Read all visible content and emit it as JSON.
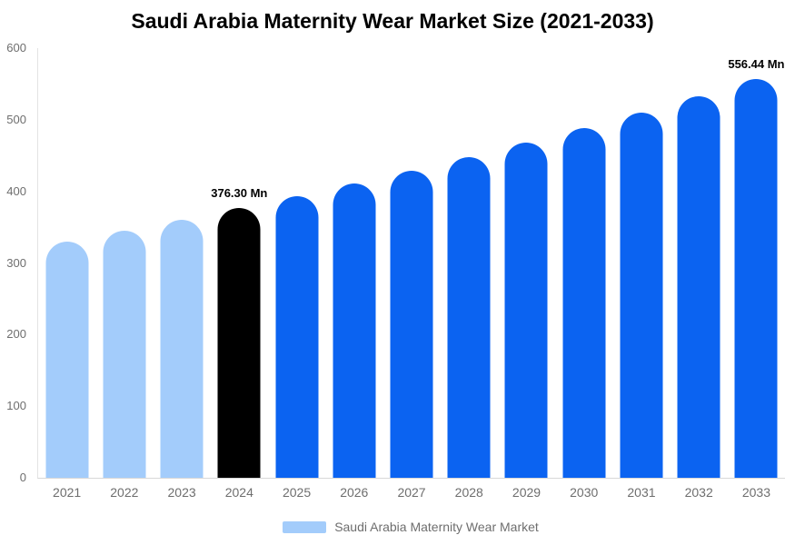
{
  "chart_data": {
    "type": "bar",
    "title": "Saudi Arabia Maternity Wear Market Size (2021-2033)",
    "legend_label": "Saudi Arabia Maternity Wear Market",
    "unit": "Mn",
    "categories": [
      "2021",
      "2022",
      "2023",
      "2024",
      "2025",
      "2026",
      "2027",
      "2028",
      "2029",
      "2030",
      "2031",
      "2032",
      "2033"
    ],
    "values": [
      330.4,
      345.1,
      360.4,
      376.3,
      393.0,
      410.5,
      428.7,
      447.8,
      467.6,
      488.4,
      510.1,
      532.8,
      556.44
    ],
    "segments": [
      "historical",
      "historical",
      "historical",
      "base_year",
      "forecast",
      "forecast",
      "forecast",
      "forecast",
      "forecast",
      "forecast",
      "forecast",
      "forecast",
      "forecast"
    ],
    "colors": {
      "historical": "#A3CCFB",
      "base_year": "#000000",
      "forecast": "#0B63F1"
    },
    "annotations": [
      {
        "category": "2024",
        "text": "376.30 Mn"
      },
      {
        "category": "2033",
        "text": "556.44 Mn"
      }
    ],
    "ylim": [
      0,
      600
    ],
    "yticks": [
      0,
      100,
      200,
      300,
      400,
      500,
      600
    ],
    "grid": false,
    "legend_position": "bottom",
    "axis_text_color": "#6E6E6E"
  }
}
